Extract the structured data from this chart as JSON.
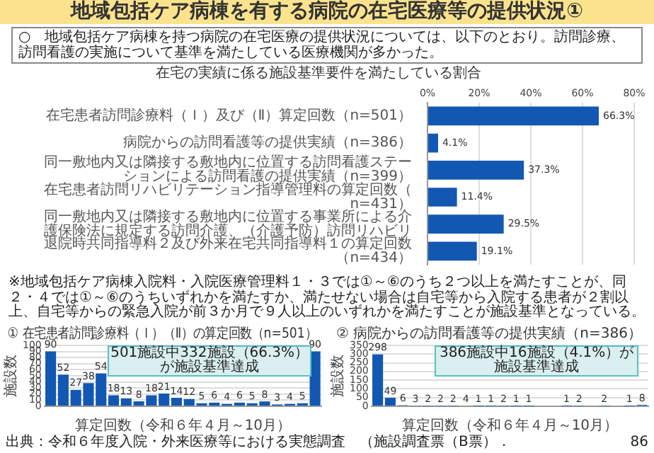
{
  "chart_data": [
    {
      "type": "other",
      "title": "地域包括ケア病棟を有する病院の在宅医療等の提供状況①",
      "subtitle": "○　地域包括ケア病棟を持つ病院の在宅医療の提供状況については、以下のとおり。訪問診療、訪問看護の実施について基準を満たしている医療機関が多かった。"
    },
    {
      "type": "bar",
      "orientation": "horizontal",
      "title": "在宅の実績に係る施設基準要件を満たしている割合",
      "categories": [
        "在宅患者訪問診療料（Ｉ）及び（Ⅱ）算定回数（n=501）",
        "病院からの訪問看護等の提供実績（n=386）",
        "同一敷地内又は隣接する敷地内に位置する訪問看護ステーションによる訪問看護の提供実績（n=399）",
        "在宅患者訪問リハビリテーション指導管理料の算定回数（n=431）",
        "同一敷地内又は隣接する敷地内に位置する事業所による介護保険法に規定する訪問介護、（介護予防）訪問リハビリ",
        "退院時共同指導料２及び外来在宅共同指導料１の算定回数（n=434）"
      ],
      "values": [
        66.3,
        4.1,
        37.3,
        11.4,
        29.5,
        19.1
      ],
      "value_labels": [
        "66.3%",
        "4.1%",
        "37.3%",
        "11.4%",
        "29.5%",
        "19.1%"
      ],
      "color": "#1258b3",
      "xlim": [
        0,
        80
      ],
      "xticks": [
        {
          "value": 0,
          "label": "0%"
        },
        {
          "value": 20,
          "label": "20%"
        },
        {
          "value": 40,
          "label": "40%"
        },
        {
          "value": 60,
          "label": "60%"
        },
        {
          "value": 80,
          "label": "80%"
        }
      ],
      "grid": "x",
      "annotations": [
        "※地域包括ケア病棟入院料・入院医療管理料１・３では①～⑥のうち２つ以上を満たすことが、同２・４では①～⑥のうちいずれかを満たすか、満たせない場合は自宅等から入院する患者が２割以上、自宅等からの緊急入院が前３か月で９人以上のいずれかを満たすことが施設基準となっている。"
      ]
    },
    {
      "type": "bar",
      "title": "① 在宅患者訪問診療料（Ｉ）（Ⅱ）の算定回数（n=501）",
      "xlabel": "算定回数（令和６年４月～10月）",
      "ylabel": "施設数",
      "categories": [
        null,
        null,
        null,
        null,
        null,
        null,
        null,
        null,
        null,
        null,
        null,
        null,
        null,
        null,
        null,
        null,
        null,
        null,
        null,
        null,
        null,
        null
      ],
      "values": [
        90,
        52,
        27,
        38,
        54,
        18,
        13,
        8,
        18,
        21,
        14,
        12,
        5,
        6,
        4,
        6,
        5,
        8,
        3,
        4,
        5,
        90
      ],
      "data_labels": true,
      "color": "#1258b3",
      "ylim": [
        0,
        100
      ],
      "yticks": [
        0,
        10,
        20,
        30,
        40,
        50,
        60,
        70,
        80,
        90,
        100
      ],
      "grid": "y",
      "annotations": [
        "501施設中332施設（66.3%）が施設基準達成"
      ]
    },
    {
      "type": "bar",
      "title": "② 病院からの訪問看護等の提供実績（n=386）",
      "xlabel": "算定回数（令和６年４月～10月）",
      "ylabel": "施設数",
      "categories": [
        null,
        null,
        null,
        null,
        null,
        null,
        null,
        null,
        null,
        null,
        null,
        null,
        null,
        null,
        null,
        null,
        null,
        null,
        null,
        null,
        null,
        null
      ],
      "values": [
        298,
        49,
        6,
        3,
        2,
        2,
        2,
        4,
        1,
        1,
        2,
        1,
        1,
        0,
        0,
        1,
        2,
        0,
        2,
        0,
        1,
        8
      ],
      "value_labels": [
        "298",
        "49",
        "6",
        "3",
        "2",
        "2",
        "2",
        "4",
        "1",
        "1",
        "2",
        "1",
        "1",
        null,
        null,
        "1",
        "2",
        null,
        "2",
        null,
        "1",
        "8"
      ],
      "color": "#1258b3",
      "ylim": [
        0,
        350
      ],
      "yticks": [
        0,
        50,
        100,
        150,
        200,
        250,
        300,
        350
      ],
      "grid": "y",
      "annotations": [
        "386施設中16施設（4.1%）が施設基準達成",
        "出典：令和６年度入院・外来医療等における実態調査　（施設調査票（B票）．",
        "86"
      ]
    }
  ]
}
